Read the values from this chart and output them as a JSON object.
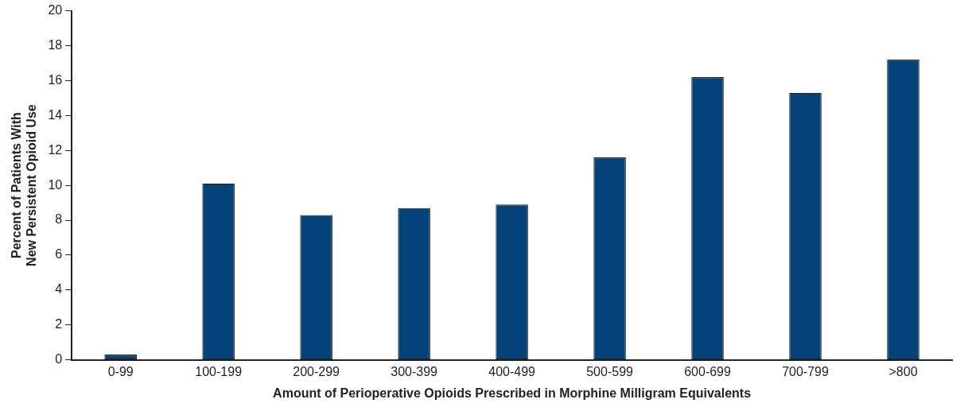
{
  "chart_data": {
    "type": "bar",
    "xlabel": "Amount of Perioperative Opioids Prescribed in Morphine Milligram Equivalents",
    "ylabel": "Percent of Patients With\nNew Persistent Opioid Use",
    "categories": [
      "0-99",
      "100-199",
      "200-299",
      "300-399",
      "400-499",
      "500-599",
      "600-699",
      "700-799",
      ">800"
    ],
    "values": [
      0.3,
      10.1,
      8.3,
      8.7,
      8.9,
      11.6,
      16.2,
      15.3,
      17.2
    ],
    "color": "#04427a",
    "ylim": [
      0,
      20
    ],
    "yticks": [
      0,
      2,
      4,
      6,
      8,
      10,
      12,
      14,
      16,
      18,
      20
    ],
    "grid": false,
    "legend": false
  }
}
